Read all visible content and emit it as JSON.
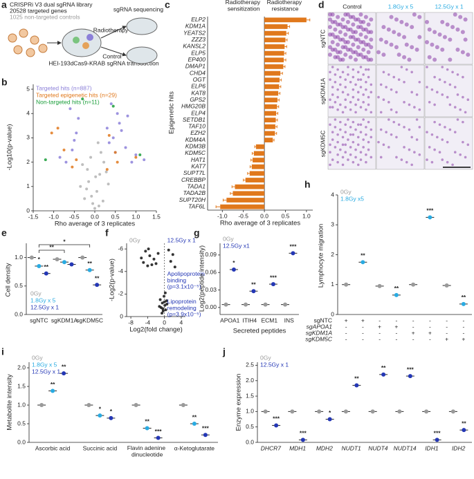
{
  "diagram": {
    "panel": "a",
    "library": "CRISPRi V3 dual sgRNA library",
    "genes": "20528 targeted genes",
    "controls": "1025 non-targeted controls",
    "cells": "HEI-193dCas9-KRAB sgRNA transduction",
    "arm1": "Radiotherapy",
    "arm2": "Control",
    "readout": "sgRNA sequencing"
  },
  "image_grid": {
    "panel": "d",
    "columns": [
      "Control",
      "1.8Gy x 5",
      "12.5Gy x 1"
    ],
    "rows": [
      "sgNTC",
      "sgKDM1A",
      "sgKDM5C"
    ]
  },
  "chart_data": [
    {
      "type": "scatter",
      "panel": "b",
      "xlabel": "Rho average of 3 replicates",
      "ylabel": "-Log10(p-value)",
      "xlim": [
        -1.5,
        1.5
      ],
      "xticks": [
        -1.5,
        {
          "value": -1,
          "label": "-1.0"
        },
        -0.5,
        {
          "value": 0,
          "label": "0.0"
        },
        0.5,
        {
          "value": 1,
          "label": "1.0"
        },
        1.5
      ],
      "ylim": [
        0,
        5.2
      ],
      "yticks": [
        0,
        1,
        2,
        3,
        4,
        5
      ],
      "series": [
        {
          "color": "#b3b3b3",
          "x": [
            -0.25,
            -0.15,
            -0.05,
            0.05,
            0.12,
            0.2,
            -0.3,
            0.28,
            0.0,
            -0.1,
            0.15,
            -0.2,
            0.08,
            -0.35,
            0.33,
            0.02,
            -0.08,
            0.22,
            -0.18,
            0.1
          ],
          "values": [
            0.5,
            1.2,
            0.3,
            0.8,
            1.5,
            0.4,
            1.9,
            1.6,
            0.1,
            2.2,
            2.4,
            0.9,
            2.8,
            1.0,
            1.1,
            1.4,
            0.6,
            2.0,
            1.7,
            0.2
          ]
        },
        {
          "name": "Targeted hits (n=887)",
          "color": "#8c80d9",
          "x": [
            -0.55,
            -0.45,
            -0.7,
            -0.4,
            -0.6,
            0.45,
            0.6,
            0.5,
            0.75,
            0.4,
            0.9,
            1.0,
            0.55,
            0.35,
            -0.85,
            0.65,
            1.2,
            0.3,
            -0.5,
            0.8
          ],
          "values": [
            2.5,
            3.2,
            2.0,
            3.8,
            4.2,
            3.0,
            3.6,
            2.4,
            2.6,
            4.4,
            2.0,
            2.3,
            4.0,
            2.8,
            2.2,
            3.3,
            2.1,
            3.4,
            2.9,
            3.9
          ]
        },
        {
          "name": "Targeted epigenetic hits (n=29)",
          "color": "#e0781c",
          "x": [
            -1.05,
            -0.9,
            -0.75,
            -0.55,
            -0.45,
            0.35,
            0.5,
            0.55,
            1.0,
            0.3
          ],
          "values": [
            3.2,
            3.4,
            2.5,
            1.8,
            2.1,
            3.1,
            2.4,
            2.0,
            2.2,
            1.7
          ]
        },
        {
          "name": "Non-targeted hits (n=11)",
          "color": "#1a9e3a",
          "x": [
            -1.2,
            -0.3,
            0.45,
            1.1
          ],
          "values": [
            2.1,
            4.6,
            4.3,
            2.3
          ]
        }
      ]
    },
    {
      "type": "hbar",
      "panel": "c",
      "xlabel": "Rho average of 3 replicates",
      "ylabel": "Epigenetic hits",
      "color": "#e0781c",
      "top_labels": [
        "Radiotherapy sensitization",
        "Radiotherapy resistance"
      ],
      "xlim": [
        -1.35,
        1.15
      ],
      "xticks": [
        {
          "value": -1,
          "label": "-1.0"
        },
        -0.5,
        {
          "value": 0,
          "label": "0.0"
        },
        0.5,
        {
          "value": 1,
          "label": "1.0"
        }
      ],
      "categories": [
        "ELP2",
        "KDM1A",
        "YEATS2",
        "ZZZ3",
        "KANSL2",
        "ELP5",
        "EP400",
        "DMAP1",
        "CHD4",
        "OGT",
        "ELP6",
        "KAT8",
        "GPS2",
        "HMG20B",
        "ELP4",
        "SETDB1",
        "TAF10",
        "EZH2",
        "KDM4A",
        "KDM3B",
        "KDM5C",
        "HAT1",
        "KAT7",
        "SUPT7L",
        "CREBBP",
        "TADA1",
        "TADA2B",
        "SUPT20H",
        "TAF6L"
      ],
      "values": [
        1.0,
        0.55,
        0.52,
        0.5,
        0.48,
        0.47,
        0.46,
        0.45,
        0.38,
        0.36,
        0.35,
        0.33,
        0.31,
        0.3,
        0.28,
        0.27,
        0.26,
        0.25,
        0.2,
        -0.2,
        -0.25,
        -0.28,
        -0.3,
        -0.35,
        -0.45,
        -0.7,
        -0.75,
        -0.9,
        -1.05
      ],
      "errors": [
        0.08,
        0.05,
        0.05,
        0.04,
        0.05,
        0.04,
        0.05,
        0.04,
        0.05,
        0.04,
        0.04,
        0.04,
        0.04,
        0.04,
        0.04,
        0.04,
        0.04,
        0.04,
        0.03,
        0.03,
        0.04,
        0.04,
        0.04,
        0.05,
        0.05,
        0.07,
        0.06,
        0.08,
        0.1
      ]
    },
    {
      "type": "dot",
      "panel": "e",
      "ylabel": "Cell density",
      "ylim": [
        0,
        1.25
      ],
      "yticks": [
        {
          "value": 0,
          "label": "0.0"
        },
        0.5,
        {
          "value": 1,
          "label": "1.0"
        }
      ],
      "categories": [
        "sgNTC",
        "sgKDM1A",
        "sgKDM5C"
      ],
      "brackets": [
        "**",
        "*"
      ],
      "series": [
        {
          "name": "0Gy",
          "color": "#9a9a9a",
          "values": [
            1.0,
            0.97,
            1.0
          ],
          "significance": [
            null,
            null,
            null
          ]
        },
        {
          "name": "1.8Gy x 5",
          "color": "#29abe2",
          "values": [
            0.85,
            0.92,
            0.78
          ],
          "significance": [
            "*",
            null,
            "**"
          ]
        },
        {
          "name": "12.5Gy x 1",
          "color": "#2437b5",
          "values": [
            0.72,
            0.88,
            0.52
          ],
          "significance": [
            "**",
            null,
            "**"
          ]
        }
      ]
    },
    {
      "type": "scatter",
      "panel": "f",
      "xlabel": "Log2(fold change)",
      "ylabel": "-Log2(p-value)",
      "side_labels": [
        "0Gy",
        "12.5Gy x 1"
      ],
      "annotations": [
        "Apolipoprotein binding (p=3.1x10⁻⁵)",
        "Lipoprotein remodeling (p=3.9x10⁻⁵)"
      ],
      "xlim": [
        -9,
        5
      ],
      "xticks": [
        -8,
        -4,
        0,
        4
      ],
      "ylim": [
        0,
        -6.5
      ],
      "yticks": [
        -6,
        -4,
        -2,
        0
      ],
      "series": [
        {
          "color": "#111111",
          "x": [
            -5.5,
            -5,
            -4.5,
            -4,
            -3.8,
            -3.5,
            -3,
            -2.5,
            -2,
            -1.5,
            1,
            1.5,
            2,
            2.5,
            -1,
            -0.8,
            -0.5,
            -0.3,
            -0.1,
            0.1,
            0.3,
            0.5,
            -1.2,
            -0.6,
            0.2,
            0.6,
            -0.4,
            0
          ],
          "values": [
            -5.2,
            -4.8,
            -5.8,
            -4.5,
            -6,
            -5.4,
            -4.6,
            -5.1,
            -4.7,
            -5.6,
            -5.9,
            -4.9,
            -5.5,
            -4.4,
            -1.5,
            -0.8,
            -1.2,
            -0.5,
            -1.8,
            -1.0,
            -0.6,
            -1.4,
            -0.9,
            -0.3,
            -2.1,
            -1.1,
            -0.7,
            -1.3
          ]
        }
      ]
    },
    {
      "type": "dot",
      "panel": "g",
      "xlabel": "Secreted peptides",
      "ylabel": "Log2(peptide intensity)",
      "ylim": [
        -0.012,
        0.11
      ],
      "yticks": [
        {
          "value": 0,
          "label": "0.00"
        },
        0.03,
        0.06,
        0.09
      ],
      "categories": [
        "APOA1",
        "ITIH4",
        "ECM1",
        "INS"
      ],
      "series": [
        {
          "name": "0Gy",
          "color": "#9a9a9a",
          "values": [
            0.005,
            0.005,
            0.005,
            0.005
          ],
          "significance": [
            null,
            null,
            null,
            null
          ]
        },
        {
          "name": "12.5Gy x1",
          "color": "#2437b5",
          "values": [
            0.065,
            0.028,
            0.04,
            0.093
          ],
          "significance": [
            "*",
            "**",
            "***",
            "***"
          ]
        }
      ]
    },
    {
      "type": "dot",
      "panel": "h",
      "ylabel": "Lymphocyte migration",
      "ylim": [
        0,
        4
      ],
      "yticks": [
        0,
        1,
        2,
        3,
        4
      ],
      "categories": [
        null,
        null,
        null,
        null,
        null,
        null,
        null,
        null
      ],
      "table": [
        {
          "label": "sgNTC",
          "cells": [
            "+",
            "+",
            "-",
            "-",
            "-",
            "-",
            "-",
            "-"
          ]
        },
        {
          "label": "sgAPOA1",
          "cells": [
            "-",
            "-",
            "+",
            "+",
            "-",
            "-",
            "-",
            "-"
          ]
        },
        {
          "label": "sgKDM1A",
          "cells": [
            "-",
            "-",
            "-",
            "-",
            "+",
            "+",
            "-",
            "-"
          ]
        },
        {
          "label": "sgKDM5C",
          "cells": [
            "-",
            "-",
            "-",
            "-",
            "-",
            "-",
            "+",
            "+"
          ]
        }
      ],
      "series": [
        {
          "name": "0Gy",
          "color": "#9a9a9a",
          "values": [
            1.0,
            null,
            0.95,
            null,
            1.0,
            null,
            0.97,
            null
          ],
          "significance": [
            null,
            null,
            null,
            null,
            null,
            null,
            null,
            null
          ]
        },
        {
          "name": "1.8Gy x5",
          "color": "#29abe2",
          "values": [
            null,
            1.75,
            null,
            0.65,
            null,
            3.25,
            null,
            0.35
          ],
          "significance": [
            null,
            "**",
            null,
            "**",
            null,
            "***",
            null,
            "**"
          ]
        }
      ]
    },
    {
      "type": "dot",
      "panel": "i",
      "ylabel": "Metabolite intensity",
      "ylim": [
        0,
        2.15
      ],
      "yticks": [
        {
          "value": 0,
          "label": "0.0"
        },
        0.5,
        {
          "value": 1,
          "label": "1.0"
        },
        1.5,
        {
          "value": 2,
          "label": "2.0"
        }
      ],
      "categories": [
        "Ascorbic acid",
        "Succinic acid",
        "Flavin adenine dinucleotide",
        "α-Ketoglutarate"
      ],
      "series": [
        {
          "name": "0Gy",
          "color": "#9a9a9a",
          "values": [
            1.0,
            1.0,
            1.0,
            1.0
          ],
          "significance": [
            null,
            null,
            null,
            null
          ]
        },
        {
          "name": "1.8Gy x 5",
          "color": "#29abe2",
          "values": [
            1.38,
            0.72,
            0.38,
            0.5
          ],
          "significance": [
            "**",
            "*",
            "**",
            "**"
          ]
        },
        {
          "name": "12.5Gy x 1",
          "color": "#2437b5",
          "values": [
            1.85,
            0.65,
            0.12,
            0.2
          ],
          "significance": [
            "**",
            "*",
            "***",
            "***"
          ]
        }
      ]
    },
    {
      "type": "dot",
      "panel": "j",
      "ylabel": "Enzyme expression",
      "ylim": [
        0,
        2.6
      ],
      "yticks": [
        {
          "value": 0,
          "label": "0.0"
        },
        0.5,
        {
          "value": 1,
          "label": "1.0"
        },
        1.5,
        {
          "value": 2,
          "label": "2.0"
        },
        2.5
      ],
      "categories": [
        "DHCR7",
        "MDH1",
        "MDH2",
        "NUDT1",
        "NUDT4",
        "NUDT14",
        "IDH1",
        "IDH2"
      ],
      "series": [
        {
          "name": "0Gy",
          "color": "#9a9a9a",
          "values": [
            1.0,
            1.0,
            1.0,
            1.0,
            1.0,
            1.0,
            1.0,
            1.0
          ],
          "significance": [
            null,
            null,
            null,
            null,
            null,
            null,
            null,
            null
          ]
        },
        {
          "name": "12.5Gy x 1",
          "color": "#2437b5",
          "values": [
            0.55,
            0.08,
            0.75,
            1.85,
            2.2,
            2.15,
            0.08,
            0.4
          ],
          "significance": [
            "***",
            "***",
            "*",
            "**",
            "**",
            "***",
            "***",
            "**"
          ]
        }
      ]
    }
  ]
}
